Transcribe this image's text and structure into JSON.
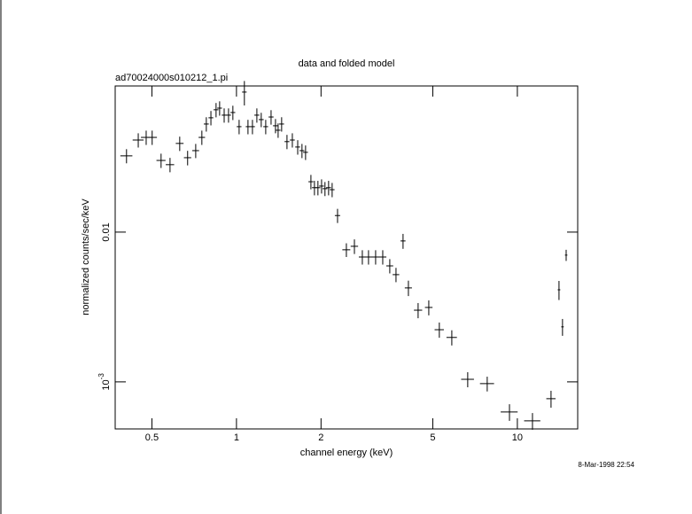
{
  "chart_data": {
    "type": "scatter",
    "title": "data and folded model",
    "subtitle": "ad70024000s010212_1.pi",
    "x_label": "channel energy (keV)",
    "y_label": "normalized counts/sec/keV",
    "timestamp": "8-Mar-1998 22:54",
    "xscale": "log",
    "yscale": "log",
    "color": "#000000",
    "xlim": [
      0.37,
      16.4
    ],
    "ylim": [
      0.000485,
      0.0946
    ],
    "xticks": [
      0.5,
      1,
      2,
      5,
      10
    ],
    "yticks": [
      {
        "value": 0.001,
        "label": "10",
        "exponent": "-3"
      },
      0.01
    ],
    "x": [
      0.406,
      0.447,
      0.477,
      0.501,
      0.539,
      0.58,
      0.628,
      0.67,
      0.716,
      0.753,
      0.781,
      0.811,
      0.846,
      0.871,
      0.904,
      0.937,
      0.971,
      1.022,
      1.067,
      1.099,
      1.14,
      1.182,
      1.225,
      1.271,
      1.328,
      1.377,
      1.407,
      1.448,
      1.513,
      1.581,
      1.652,
      1.711,
      1.762,
      1.841,
      1.895,
      1.95,
      2.009,
      2.066,
      2.128,
      2.191,
      2.29,
      2.462,
      2.63,
      2.806,
      2.952,
      3.129,
      3.317,
      3.514,
      3.698,
      3.918,
      4.094,
      4.433,
      4.838,
      5.275,
      5.843,
      6.657,
      7.811,
      9.374,
      11.32,
      13.18,
      14.07,
      14.48,
      14.92
    ],
    "xerr": [
      0.02,
      0.02,
      0.02,
      0.02,
      0.02,
      0.02,
      0.02,
      0.02,
      0.02,
      0.02,
      0.016,
      0.016,
      0.017,
      0.017,
      0.018,
      0.019,
      0.019,
      0.02,
      0.02,
      0.02,
      0.023,
      0.024,
      0.025,
      0.025,
      0.027,
      0.028,
      0.028,
      0.029,
      0.03,
      0.032,
      0.033,
      0.034,
      0.035,
      0.037,
      0.038,
      0.039,
      0.04,
      0.041,
      0.043,
      0.044,
      0.05,
      0.08,
      0.08,
      0.08,
      0.09,
      0.1,
      0.1,
      0.1,
      0.1,
      0.08,
      0.12,
      0.15,
      0.15,
      0.2,
      0.25,
      0.35,
      0.45,
      0.65,
      0.75,
      0.5,
      0.15,
      0.15,
      0.15
    ],
    "y": [
      0.0323,
      0.0412,
      0.0429,
      0.0429,
      0.0301,
      0.0282,
      0.0391,
      0.0314,
      0.035,
      0.0429,
      0.0527,
      0.058,
      0.0656,
      0.0673,
      0.0604,
      0.0604,
      0.0629,
      0.0506,
      0.0861,
      0.0506,
      0.0506,
      0.0604,
      0.0564,
      0.0506,
      0.0587,
      0.0513,
      0.0479,
      0.0527,
      0.0402,
      0.0412,
      0.037,
      0.035,
      0.0341,
      0.0217,
      0.0198,
      0.0198,
      0.0203,
      0.0195,
      0.0198,
      0.0192,
      0.0129,
      0.00762,
      0.00804,
      0.00682,
      0.00682,
      0.00682,
      0.00682,
      0.00595,
      0.0052,
      0.00873,
      0.00424,
      0.00301,
      0.00314,
      0.00223,
      0.00198,
      0.00104,
      0.000973,
      0.000629,
      0.000549,
      0.000772,
      0.00412,
      0.00233,
      0.00702
    ],
    "yerr": [
      0.0035,
      0.0045,
      0.0047,
      0.0047,
      0.0033,
      0.0031,
      0.0043,
      0.0035,
      0.0038,
      0.0047,
      0.0058,
      0.0064,
      0.0072,
      0.0074,
      0.0066,
      0.0066,
      0.0069,
      0.0056,
      0.016,
      0.0056,
      0.0056,
      0.0066,
      0.0062,
      0.0056,
      0.0065,
      0.0056,
      0.0053,
      0.0058,
      0.0044,
      0.0045,
      0.0041,
      0.0038,
      0.0038,
      0.0024,
      0.0022,
      0.0022,
      0.0022,
      0.0021,
      0.0022,
      0.0021,
      0.0014,
      0.0008,
      0.0009,
      0.00075,
      0.00075,
      0.00075,
      0.00075,
      0.00065,
      0.00057,
      0.001,
      0.0005,
      0.00035,
      0.00036,
      0.00026,
      0.00023,
      0.00012,
      0.00011,
      8e-05,
      7e-05,
      0.0001,
      0.0006,
      0.0003,
      0.0006
    ]
  }
}
